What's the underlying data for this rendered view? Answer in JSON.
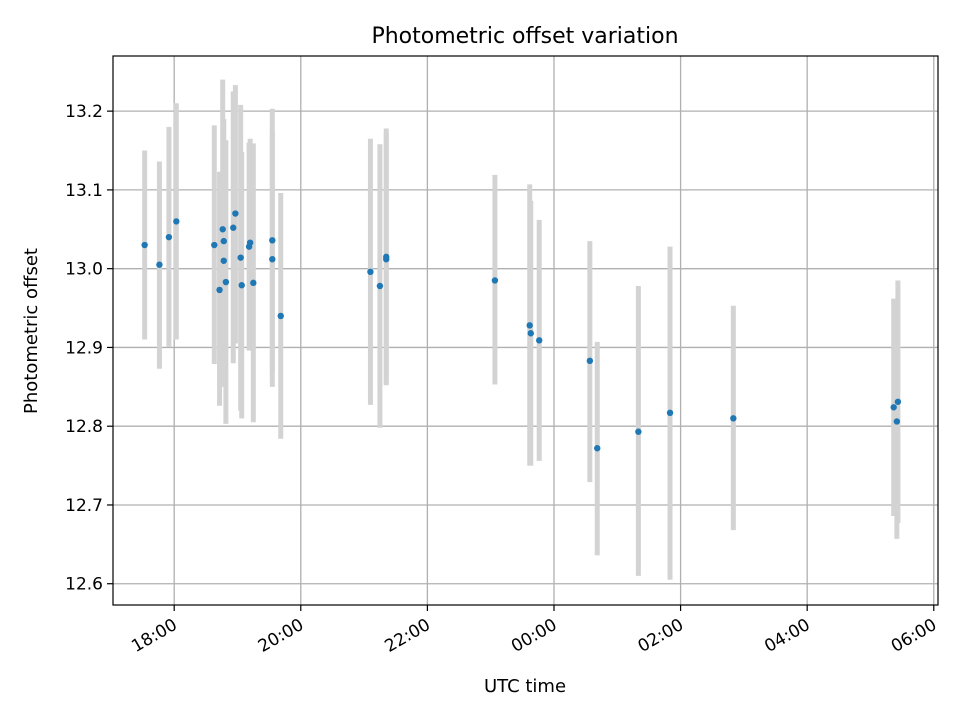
{
  "chart_data": {
    "type": "scatter",
    "title": "Photometric offset variation",
    "xlabel": "UTC time",
    "ylabel": "Photometric offset",
    "x_tick_labels": [
      "18:00",
      "20:00",
      "22:00",
      "00:00",
      "02:00",
      "04:00",
      "06:00"
    ],
    "y_tick_labels": [
      "12.6",
      "12.7",
      "12.8",
      "12.9",
      "13.0",
      "13.1",
      "13.2"
    ],
    "xlim": [
      "17:02",
      "06:04"
    ],
    "ylim": [
      12.573,
      13.27
    ],
    "grid": true,
    "points": [
      {
        "t": "17:32",
        "y": 13.03,
        "lo": 12.91,
        "hi": 13.15
      },
      {
        "t": "17:46",
        "y": 13.005,
        "lo": 12.873,
        "hi": 13.136
      },
      {
        "t": "17:55",
        "y": 13.04,
        "lo": 12.901,
        "hi": 13.18
      },
      {
        "t": "18:02",
        "y": 13.06,
        "lo": 12.91,
        "hi": 13.21
      },
      {
        "t": "18:38",
        "y": 13.03,
        "lo": 12.879,
        "hi": 13.182
      },
      {
        "t": "18:43",
        "y": 12.973,
        "lo": 12.826,
        "hi": 13.123
      },
      {
        "t": "18:46",
        "y": 13.05,
        "lo": 12.85,
        "hi": 13.24
      },
      {
        "t": "18:47",
        "y": 13.035,
        "lo": 12.88,
        "hi": 13.19
      },
      {
        "t": "18:47",
        "y": 13.01,
        "lo": 12.86,
        "hi": 13.16
      },
      {
        "t": "18:49",
        "y": 12.983,
        "lo": 12.803,
        "hi": 13.163
      },
      {
        "t": "18:56",
        "y": 13.052,
        "lo": 12.88,
        "hi": 13.225
      },
      {
        "t": "18:58",
        "y": 13.07,
        "lo": 12.905,
        "hi": 13.233
      },
      {
        "t": "19:03",
        "y": 13.014,
        "lo": 12.82,
        "hi": 13.208
      },
      {
        "t": "19:04",
        "y": 12.979,
        "lo": 12.81,
        "hi": 13.148
      },
      {
        "t": "19:11",
        "y": 13.028,
        "lo": 12.896,
        "hi": 13.16
      },
      {
        "t": "19:12",
        "y": 13.033,
        "lo": 12.9,
        "hi": 13.165
      },
      {
        "t": "19:15",
        "y": 12.982,
        "lo": 12.805,
        "hi": 13.159
      },
      {
        "t": "19:33",
        "y": 13.036,
        "lo": 12.87,
        "hi": 13.203
      },
      {
        "t": "19:33",
        "y": 13.012,
        "lo": 12.85,
        "hi": 13.174
      },
      {
        "t": "19:41",
        "y": 12.94,
        "lo": 12.784,
        "hi": 13.096
      },
      {
        "t": "21:06",
        "y": 12.996,
        "lo": 12.827,
        "hi": 13.165
      },
      {
        "t": "21:15",
        "y": 12.978,
        "lo": 12.798,
        "hi": 13.158
      },
      {
        "t": "21:21",
        "y": 13.012,
        "lo": 12.852,
        "hi": 13.172
      },
      {
        "t": "21:21",
        "y": 13.015,
        "lo": 12.855,
        "hi": 13.178
      },
      {
        "t": "23:04",
        "y": 12.985,
        "lo": 12.853,
        "hi": 13.119
      },
      {
        "t": "23:37",
        "y": 12.928,
        "lo": 12.75,
        "hi": 13.107
      },
      {
        "t": "23:38",
        "y": 12.918,
        "lo": 12.75,
        "hi": 13.086
      },
      {
        "t": "23:46",
        "y": 12.909,
        "lo": 12.756,
        "hi": 13.062
      },
      {
        "t": "00:34",
        "y": 12.883,
        "lo": 12.729,
        "hi": 13.035
      },
      {
        "t": "00:41",
        "y": 12.772,
        "lo": 12.636,
        "hi": 12.907
      },
      {
        "t": "01:20",
        "y": 12.793,
        "lo": 12.61,
        "hi": 12.978
      },
      {
        "t": "01:50",
        "y": 12.817,
        "lo": 12.605,
        "hi": 13.028
      },
      {
        "t": "02:50",
        "y": 12.81,
        "lo": 12.668,
        "hi": 12.953
      },
      {
        "t": "05:22",
        "y": 12.824,
        "lo": 12.686,
        "hi": 12.962
      },
      {
        "t": "05:25",
        "y": 12.806,
        "lo": 12.657,
        "hi": 12.955
      },
      {
        "t": "05:26",
        "y": 12.831,
        "lo": 12.677,
        "hi": 12.985
      }
    ],
    "colors": {
      "point": "#1f77b4",
      "errorbar": "#d3d3d3",
      "grid": "#b0b0b0",
      "axis": "#000000"
    }
  }
}
